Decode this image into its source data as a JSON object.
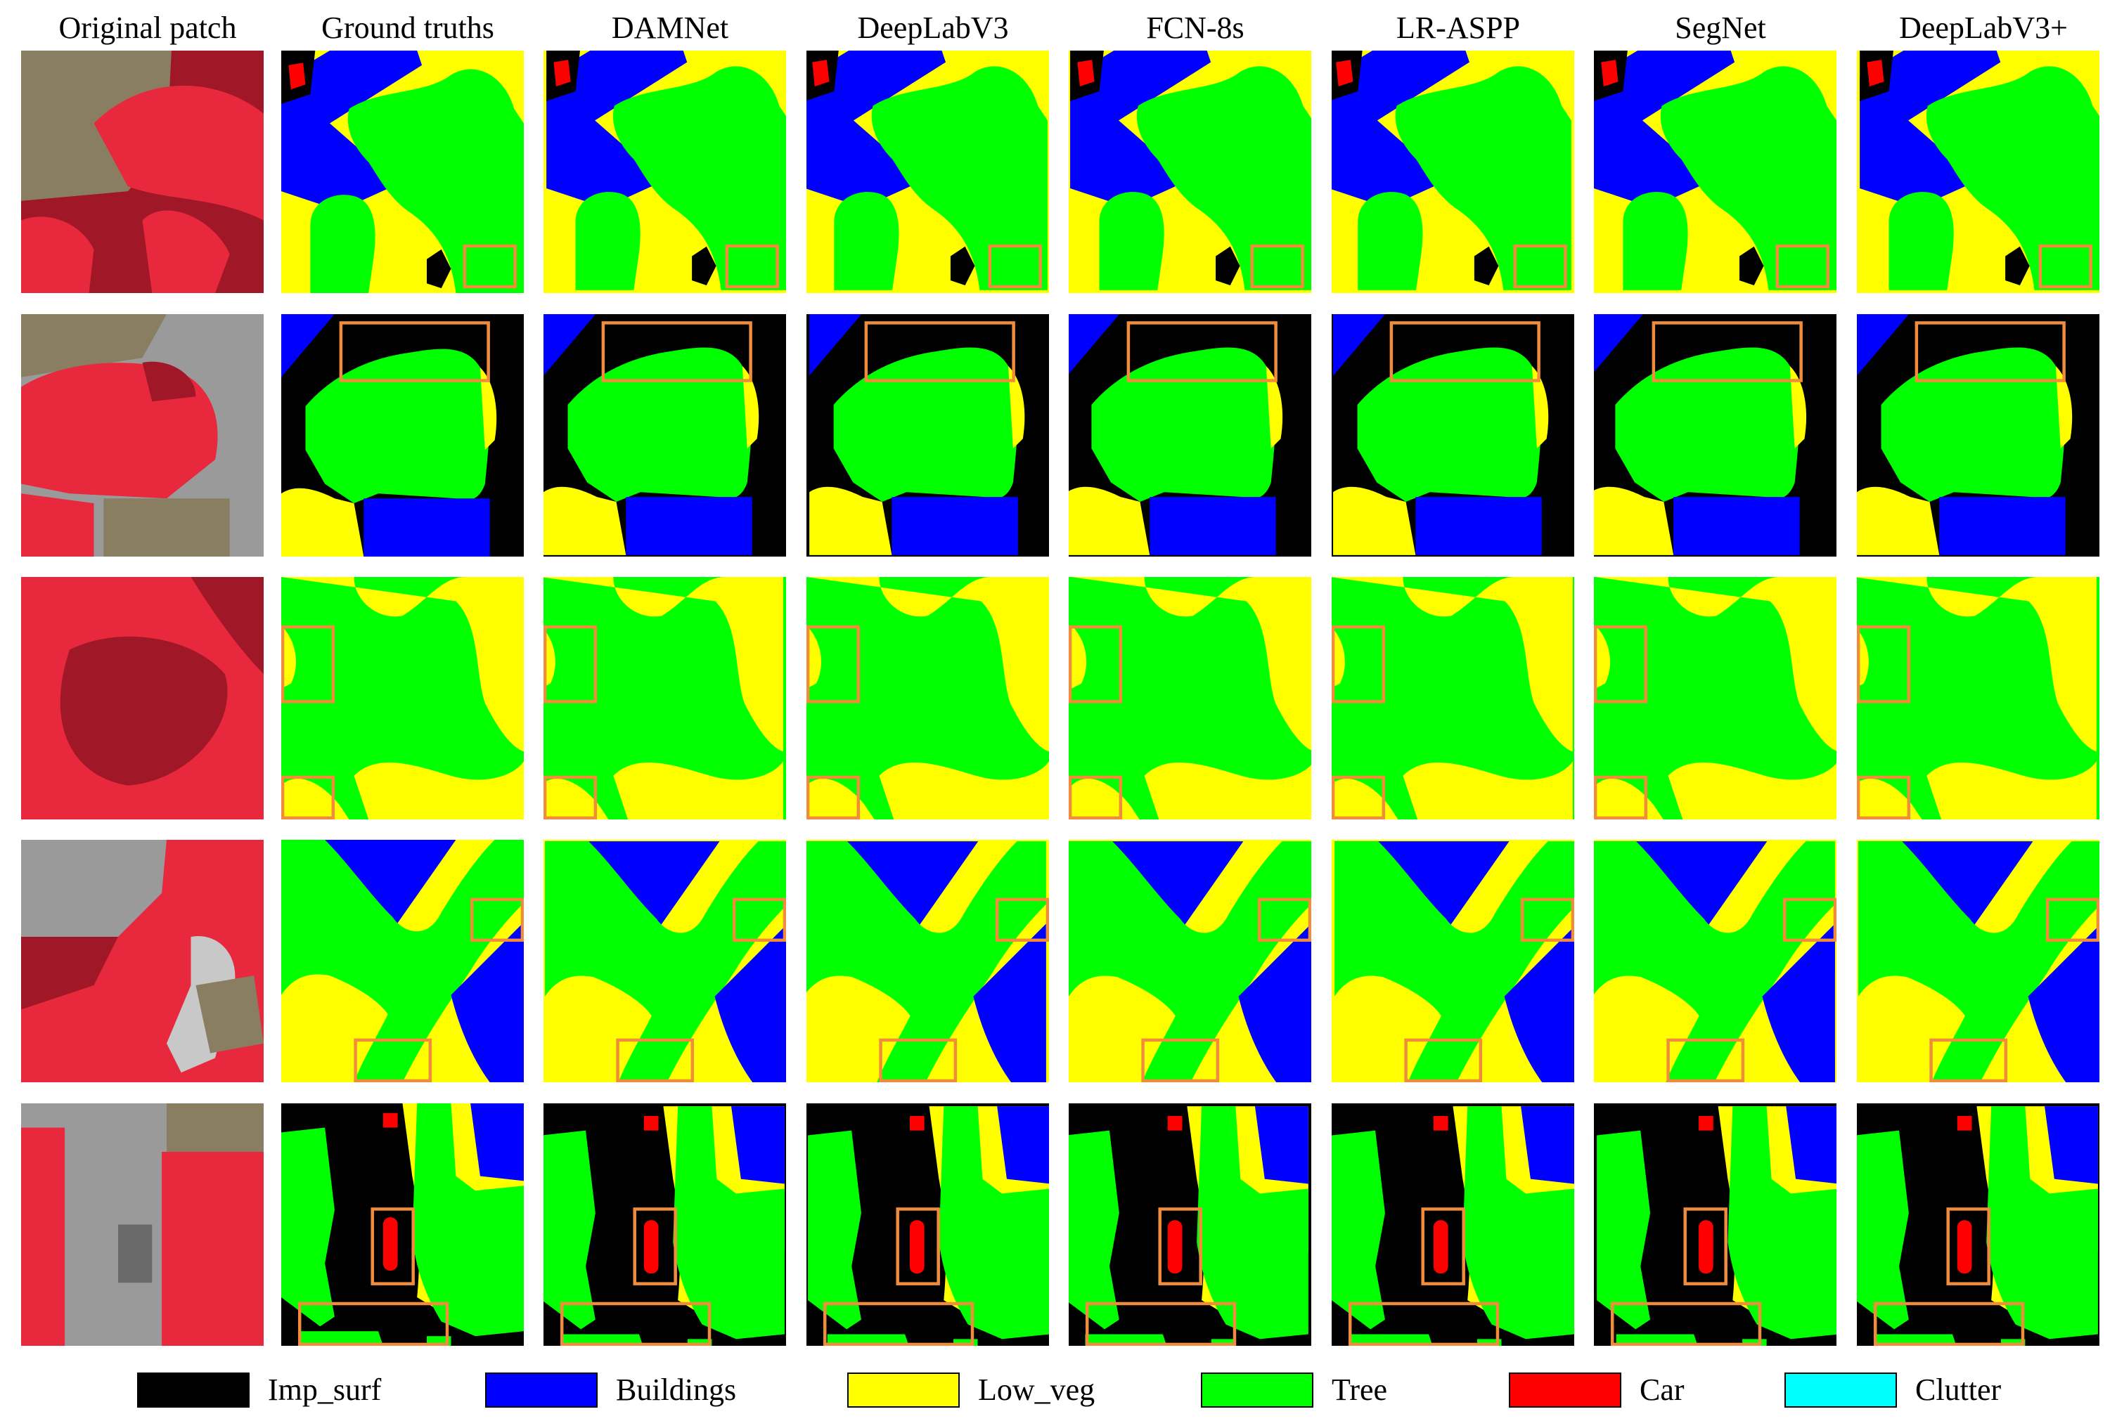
{
  "columns": [
    "Original patch",
    "Ground truths",
    "DAMNet",
    "DeepLabV3",
    "FCN-8s",
    "LR-ASPP",
    "SegNet",
    "DeepLabV3+"
  ],
  "legend": [
    {
      "label": "Imp_surf",
      "color": "#000000"
    },
    {
      "label": "Buildings",
      "color": "#0000FF"
    },
    {
      "label": "Low_veg",
      "color": "#FFFF00"
    },
    {
      "label": "Tree",
      "color": "#00FF00"
    },
    {
      "label": "Car",
      "color": "#FF0000"
    },
    {
      "label": "Clutter",
      "color": "#00FFFF"
    }
  ],
  "colors": {
    "highlight_box": "#F08C3C",
    "photo_vegetation": "#E8283C",
    "photo_dark_vegetation": "#A01828",
    "photo_roof": "#8A7E62",
    "photo_road": "#9A9A9A"
  }
}
